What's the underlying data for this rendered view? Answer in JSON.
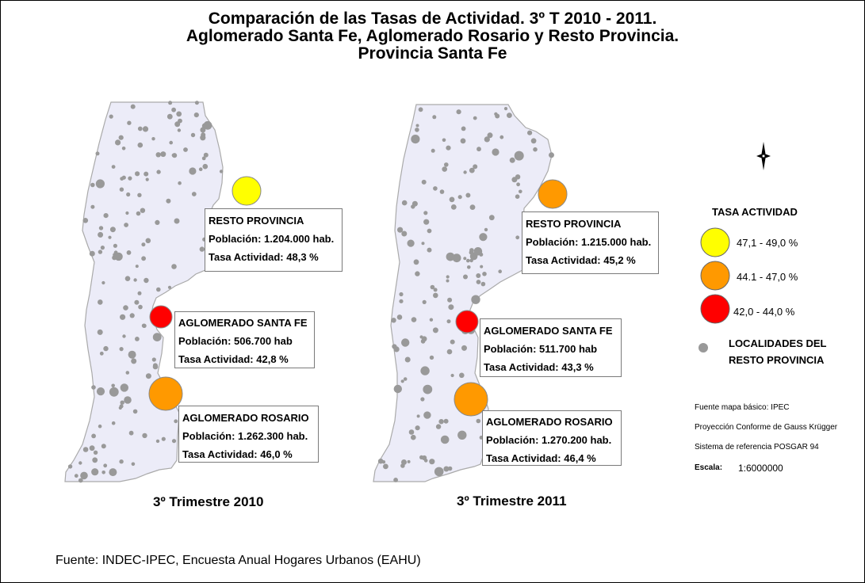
{
  "title": {
    "line1": "Comparación de las Tasas de Actividad. 3º T 2010 - 2011.",
    "line2": "Aglomerado Santa Fe, Aglomerado Rosario y Resto Provincia.",
    "line3": "Provincia Santa Fe"
  },
  "maps": [
    {
      "caption": "3º Trimestre 2010",
      "resto": {
        "name": "RESTO PROVINCIA",
        "poblacion": "Población: 1.204.000 hab.",
        "tasa": "Tasa Actividad: 48,3 %",
        "color": "#ffff00",
        "rate": 48.3
      },
      "santafe": {
        "name": "AGLOMERADO SANTA FE",
        "poblacion": "Población: 506.700 hab",
        "tasa": "Tasa Actividad: 42,8 %",
        "color": "#ff0000",
        "rate": 42.8
      },
      "rosario": {
        "name": "AGLOMERADO ROSARIO",
        "poblacion": "Población: 1.262.300 hab.",
        "tasa": "Tasa Actividad: 46,0 %",
        "color": "#ff9900",
        "rate": 46.0
      }
    },
    {
      "caption": "3º Trimestre 2011",
      "resto": {
        "name": "RESTO PROVINCIA",
        "poblacion": "Población: 1.215.000 hab.",
        "tasa": "Tasa Actividad: 45,2 %",
        "color": "#ff9900",
        "rate": 45.2
      },
      "santafe": {
        "name": "AGLOMERADO SANTA FE",
        "poblacion": "Población: 511.700 hab",
        "tasa": "Tasa Actividad: 43,3 %",
        "color": "#ff0000",
        "rate": 43.3
      },
      "rosario": {
        "name": "AGLOMERADO ROSARIO",
        "poblacion": "Población: 1.270.200 hab.",
        "tasa": "Tasa Actividad: 46,4 %",
        "color": "#ff9900",
        "rate": 46.4
      }
    }
  ],
  "legend": {
    "title": "TASA ACTIVIDAD",
    "items": [
      {
        "label": "47,1 - 49,0 %",
        "color": "#ffff00"
      },
      {
        "label": "44.1 - 47,0 %",
        "color": "#ff9900"
      },
      {
        "label": "42,0 - 44,0 %",
        "color": "#ff0000"
      }
    ],
    "localidades_line1": "LOCALIDADES DEL",
    "localidades_line2": "RESTO PROVINCIA",
    "localidades_color": "#999999"
  },
  "meta": {
    "fuente_mapa": "Fuente mapa básico: IPEC",
    "proyeccion": "Proyección Conforme de Gauss Krügger",
    "sistema": "Sistema de referencia POSGAR 94",
    "escala_label": "Escala:",
    "escala_value": "1:6000000"
  },
  "source": "Fuente: INDEC-IPEC, Encuesta Anual Hogares Urbanos (EAHU)",
  "colors": {
    "province_fill": "#ececf8",
    "province_stroke": "#aaaaaa",
    "dots": "#999999"
  },
  "icons": {
    "north_arrow": "compass-rose-icon"
  }
}
